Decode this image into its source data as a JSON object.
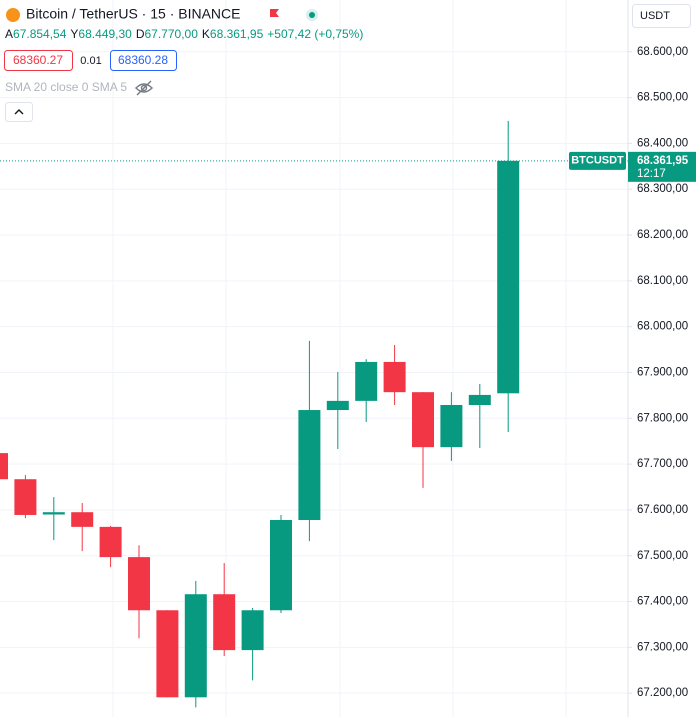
{
  "chart_data": {
    "type": "candlestick",
    "title": "Bitcoin / TetherUS · 15 · BINANCE",
    "currency": "USDT",
    "legend": [
      {
        "key": "A",
        "value": "67.854,54"
      },
      {
        "key": "Y",
        "value": "68.449,30"
      },
      {
        "key": "D",
        "value": "67.770,00"
      },
      {
        "key": "K",
        "value": "68.361,95"
      }
    ],
    "change": "+507,42 (+0,75%)",
    "sell_price": "68360.27",
    "spread": "0.01",
    "buy_price": "68360.28",
    "indicator": "SMA 20 close 0 SMA 5",
    "last_label": {
      "symbol": "BTCUSDT",
      "price": "68.361,95",
      "countdown": "12:17"
    },
    "up_color": "#089981",
    "down_color": "#f23645",
    "open": [
      67724,
      67667,
      67590,
      67595,
      67563,
      67497,
      67381,
      67191,
      67416,
      67294,
      67381,
      67578,
      67818,
      67838,
      67923,
      67857,
      67737,
      67829,
      67854.54
    ],
    "high": [
      67735,
      67676,
      67628,
      67615,
      67565,
      67523,
      67381,
      67445,
      67484,
      67386,
      67589,
      67969,
      67901,
      67929,
      67960,
      67857,
      67857,
      67875,
      68449.3
    ],
    "low": [
      67660,
      67582,
      67534,
      67510,
      67475,
      67320,
      67191,
      67169,
      67281,
      67228,
      67375,
      67532,
      67733,
      67792,
      67829,
      67648,
      67707,
      67735,
      67770.0
    ],
    "close": [
      67667,
      67589,
      67595,
      67563,
      67497,
      67381,
      67191,
      67416,
      67294,
      67381,
      67578,
      67818,
      67838,
      67923,
      67857,
      67737,
      67829,
      67851,
      68361.95
    ],
    "ylim": [
      67148,
      68713
    ],
    "yticks": [
      {
        "value": 67200,
        "label": "67.200,00"
      },
      {
        "value": 67300,
        "label": "67.300,00"
      },
      {
        "value": 67400,
        "label": "67.400,00"
      },
      {
        "value": 67500,
        "label": "67.500,00"
      },
      {
        "value": 67600,
        "label": "67.600,00"
      },
      {
        "value": 67700,
        "label": "67.700,00"
      },
      {
        "value": 67800,
        "label": "67.800,00"
      },
      {
        "value": 67900,
        "label": "67.900,00"
      },
      {
        "value": 68000,
        "label": "68.000,00"
      },
      {
        "value": 68100,
        "label": "68.100,00"
      },
      {
        "value": 68200,
        "label": "68.200,00"
      },
      {
        "value": 68300,
        "label": "68.300,00"
      },
      {
        "value": 68400,
        "label": "68.400,00"
      },
      {
        "value": 68500,
        "label": "68.500,00"
      },
      {
        "value": 68600,
        "label": "68.600,00"
      }
    ],
    "grid": true
  }
}
